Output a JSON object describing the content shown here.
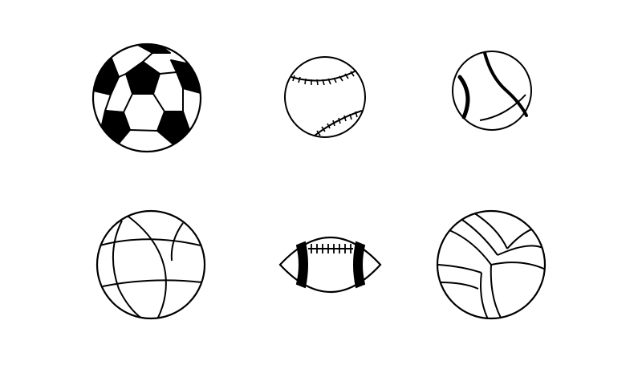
{
  "background": "#ffffff",
  "ink_color": "#000000",
  "balls": [
    {
      "name": "soccer-ball-icon"
    },
    {
      "name": "baseball-icon"
    },
    {
      "name": "tennis-ball-icon"
    },
    {
      "name": "basketball-icon"
    },
    {
      "name": "american-football-icon"
    },
    {
      "name": "volleyball-icon"
    }
  ]
}
